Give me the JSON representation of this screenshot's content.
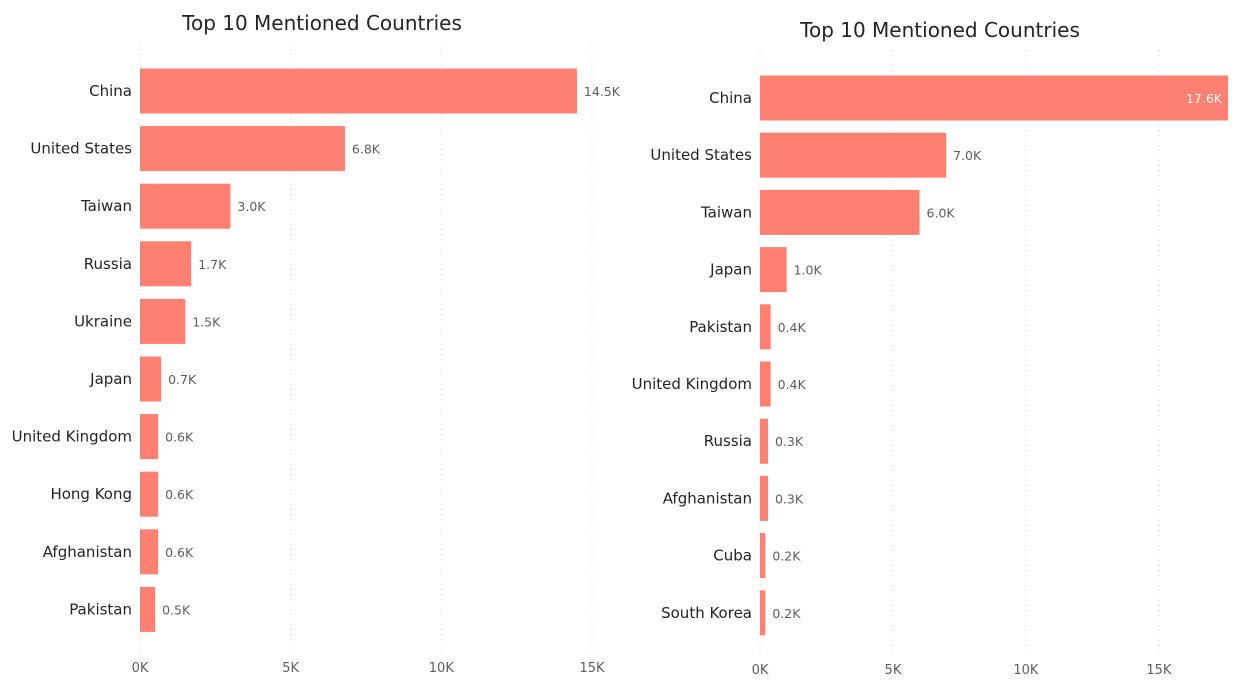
{
  "colors": {
    "bar": "#fd8070",
    "gridline": "#d8d8d8",
    "text": "#252423",
    "muted_text": "#605e5c"
  },
  "chart_data": [
    {
      "type": "bar",
      "orientation": "horizontal",
      "title": "Top 10 Mentioned Countries",
      "categories": [
        "China",
        "United States",
        "Taiwan",
        "Russia",
        "Ukraine",
        "Japan",
        "United Kingdom",
        "Hong Kong",
        "Afghanistan",
        "Pakistan"
      ],
      "values": [
        14500,
        6800,
        3000,
        1700,
        1500,
        700,
        600,
        600,
        600,
        500
      ],
      "data_labels": [
        "14.5K",
        "6.8K",
        "3.0K",
        "1.7K",
        "1.5K",
        "0.7K",
        "0.6K",
        "0.6K",
        "0.6K",
        "0.5K"
      ],
      "xlim": [
        0,
        15000
      ],
      "xticks": [
        0,
        5000,
        10000,
        15000
      ],
      "xtick_labels": [
        "0K",
        "5K",
        "10K",
        "15K"
      ],
      "grid": true,
      "legend": "none"
    },
    {
      "type": "bar",
      "orientation": "horizontal",
      "title": "Top 10 Mentioned Countries",
      "categories": [
        "China",
        "United States",
        "Taiwan",
        "Japan",
        "Pakistan",
        "United Kingdom",
        "Russia",
        "Afghanistan",
        "Cuba",
        "South Korea"
      ],
      "values": [
        17600,
        7000,
        6000,
        1000,
        400,
        400,
        300,
        300,
        200,
        200
      ],
      "data_labels": [
        "17.6K",
        "7.0K",
        "6.0K",
        "1.0K",
        "0.4K",
        "0.4K",
        "0.3K",
        "0.3K",
        "0.2K",
        "0.2K"
      ],
      "xlim": [
        0,
        17600
      ],
      "xticks": [
        0,
        5000,
        10000,
        15000
      ],
      "xtick_labels": [
        "0K",
        "5K",
        "10K",
        "15K"
      ],
      "grid": true,
      "legend": "none"
    }
  ]
}
